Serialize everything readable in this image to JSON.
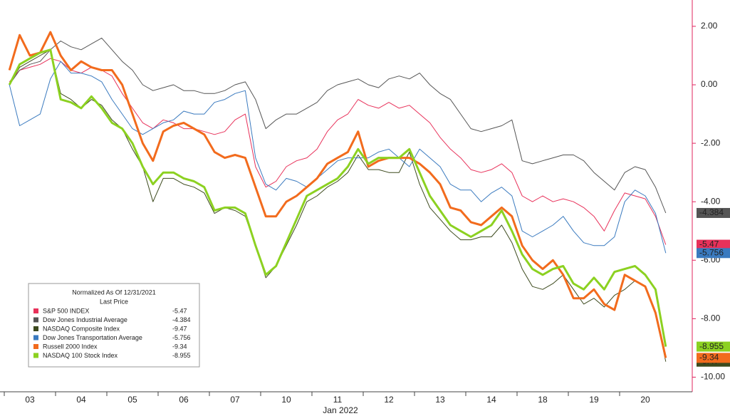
{
  "chart_data": {
    "type": "line",
    "xlabel": "Jan 2022",
    "legend_title": "Normalized As Of 12/31/2021",
    "legend_subtitle": "Last Price",
    "categories": [
      null,
      null,
      "03",
      null,
      null,
      null,
      null,
      "04",
      null,
      null,
      null,
      null,
      "05",
      null,
      null,
      null,
      null,
      "06",
      null,
      null,
      null,
      null,
      "07",
      null,
      null,
      null,
      null,
      "10",
      null,
      null,
      null,
      null,
      "11",
      null,
      null,
      null,
      null,
      "12",
      null,
      null,
      null,
      null,
      "13",
      null,
      null,
      null,
      null,
      "14",
      null,
      null,
      null,
      null,
      "18",
      null,
      null,
      null,
      null,
      "19",
      null,
      null,
      null,
      null,
      "20",
      null,
      null
    ],
    "ylim": [
      -10.5,
      2.9
    ],
    "yticks": [
      {
        "value": 2,
        "label": "2.00"
      },
      {
        "value": 0,
        "label": "0.00"
      },
      {
        "value": -2,
        "label": "-2.00"
      },
      {
        "value": -4,
        "label": "-4.00"
      },
      {
        "value": -6,
        "label": "-6.00"
      },
      {
        "value": -8,
        "label": "-8.00"
      },
      {
        "value": -10,
        "label": "-10.00"
      }
    ],
    "series": [
      {
        "name": "S&P 500 INDEX",
        "color": "#e8315a",
        "last_price": -5.47,
        "values": [
          0.1,
          0.5,
          0.6,
          0.7,
          0.9,
          0.8,
          0.5,
          0.4,
          0.6,
          0.5,
          0.3,
          -0.3,
          -0.8,
          -1.3,
          -1.5,
          -1.2,
          -1.3,
          -1.5,
          -1.5,
          -1.6,
          -1.7,
          -1.6,
          -1.2,
          -1.0,
          -2.8,
          -3.5,
          -3.3,
          -2.8,
          -2.6,
          -2.5,
          -2.2,
          -1.6,
          -1.2,
          -1.0,
          -0.5,
          -0.7,
          -0.8,
          -0.6,
          -0.8,
          -0.7,
          -1.0,
          -1.3,
          -1.8,
          -2.2,
          -2.5,
          -2.9,
          -3.0,
          -2.9,
          -2.7,
          -3.0,
          -3.8,
          -4.0,
          -3.8,
          -4.0,
          -3.9,
          -4.0,
          -4.2,
          -4.5,
          -5.0,
          -4.3,
          -3.7,
          -3.8,
          -3.9,
          -4.5,
          -5.47
        ]
      },
      {
        "name": "Dow Jones Industrial Average",
        "color": "#555555",
        "last_price": -4.384,
        "values": [
          0.0,
          0.5,
          0.7,
          0.8,
          1.2,
          1.5,
          1.3,
          1.2,
          1.4,
          1.6,
          1.2,
          0.8,
          0.5,
          0.0,
          -0.2,
          -0.1,
          0.0,
          -0.2,
          -0.2,
          -0.3,
          -0.3,
          -0.2,
          0.0,
          0.1,
          -0.5,
          -1.5,
          -1.2,
          -1.0,
          -1.0,
          -0.8,
          -0.6,
          -0.2,
          0.0,
          0.1,
          0.2,
          0.0,
          -0.1,
          0.2,
          0.3,
          0.2,
          0.4,
          0.0,
          -0.3,
          -0.5,
          -1.0,
          -1.5,
          -1.6,
          -1.5,
          -1.4,
          -1.2,
          -2.6,
          -2.7,
          -2.6,
          -2.5,
          -2.4,
          -2.4,
          -2.6,
          -3.0,
          -3.3,
          -3.6,
          -3.0,
          -2.8,
          -2.9,
          -3.5,
          -4.384
        ]
      },
      {
        "name": "NASDAQ Composite Index",
        "color": "#3d4a1e",
        "last_price": -9.47,
        "values": [
          0.0,
          0.6,
          0.8,
          1.0,
          1.2,
          -0.3,
          -0.5,
          -0.8,
          -0.5,
          -0.7,
          -1.2,
          -1.5,
          -2.2,
          -2.8,
          -4.0,
          -3.2,
          -3.2,
          -3.4,
          -3.5,
          -3.7,
          -4.4,
          -4.2,
          -4.3,
          -4.5,
          -5.5,
          -6.6,
          -6.2,
          -5.5,
          -4.8,
          -4.0,
          -3.8,
          -3.5,
          -3.3,
          -3.0,
          -2.4,
          -2.9,
          -2.9,
          -3.0,
          -3.0,
          -2.3,
          -3.4,
          -4.2,
          -4.6,
          -5.0,
          -5.3,
          -5.3,
          -5.2,
          -5.2,
          -4.8,
          -5.4,
          -6.3,
          -6.9,
          -7.0,
          -6.8,
          -6.5,
          -7.0,
          -7.5,
          -7.3,
          -7.6,
          -7.2,
          -7.0,
          -6.7,
          -6.9,
          -7.8,
          -9.47
        ]
      },
      {
        "name": "Dow Jones Transportation Average",
        "color": "#3a7abf",
        "last_price": -5.756,
        "values": [
          0.0,
          -1.4,
          -1.2,
          -1.0,
          0.2,
          0.8,
          0.4,
          0.4,
          0.3,
          0.1,
          -0.5,
          -1.0,
          -1.5,
          -1.7,
          -1.5,
          -1.3,
          -1.2,
          -0.9,
          -1.0,
          -1.0,
          -0.6,
          -0.5,
          -0.3,
          -0.2,
          -2.5,
          -3.4,
          -3.6,
          -3.2,
          -3.3,
          -3.5,
          -3.2,
          -2.9,
          -2.6,
          -2.5,
          -2.5,
          -2.5,
          -2.3,
          -2.2,
          -2.5,
          -2.8,
          -2.2,
          -2.5,
          -2.8,
          -3.4,
          -3.6,
          -3.6,
          -4.0,
          -3.7,
          -3.5,
          -3.8,
          -5.0,
          -5.2,
          -5.0,
          -4.8,
          -4.5,
          -5.0,
          -5.4,
          -5.5,
          -5.5,
          -5.2,
          -4.0,
          -3.6,
          -3.8,
          -4.4,
          -5.756
        ]
      },
      {
        "name": "Russell 2000 Index",
        "color": "#f26b1d",
        "last_price": -9.34,
        "values": [
          0.5,
          1.7,
          1.0,
          1.1,
          1.8,
          1.0,
          0.5,
          0.8,
          0.6,
          0.5,
          0.5,
          0.0,
          -1.0,
          -2.0,
          -2.6,
          -1.6,
          -1.4,
          -1.3,
          -1.5,
          -1.7,
          -2.3,
          -2.5,
          -2.4,
          -2.5,
          -3.5,
          -4.5,
          -4.5,
          -4.0,
          -3.8,
          -3.5,
          -3.2,
          -2.7,
          -2.5,
          -2.3,
          -1.6,
          -2.8,
          -2.6,
          -2.5,
          -2.5,
          -2.5,
          -2.7,
          -3.0,
          -3.4,
          -4.2,
          -4.3,
          -4.7,
          -4.8,
          -4.5,
          -4.2,
          -4.5,
          -5.5,
          -6.0,
          -6.3,
          -6.0,
          -6.5,
          -7.3,
          -7.3,
          -7.0,
          -7.5,
          -7.7,
          -6.5,
          -6.7,
          -6.9,
          -7.8,
          -9.34
        ]
      },
      {
        "name": "NASDAQ 100 Stock Index",
        "color": "#8cd121",
        "last_price": -8.955,
        "values": [
          0.0,
          0.7,
          0.9,
          1.1,
          1.2,
          -0.5,
          -0.6,
          -0.8,
          -0.4,
          -0.8,
          -1.3,
          -1.5,
          -2.0,
          -2.8,
          -3.4,
          -3.0,
          -3.0,
          -3.2,
          -3.3,
          -3.5,
          -4.3,
          -4.2,
          -4.2,
          -4.4,
          -5.5,
          -6.5,
          -6.2,
          -5.4,
          -4.6,
          -3.8,
          -3.6,
          -3.4,
          -3.2,
          -2.8,
          -2.2,
          -2.7,
          -2.5,
          -2.5,
          -2.5,
          -2.2,
          -3.0,
          -3.8,
          -4.3,
          -4.8,
          -5.0,
          -5.2,
          -5.0,
          -4.8,
          -4.3,
          -5.0,
          -5.8,
          -6.3,
          -6.5,
          -6.3,
          -6.2,
          -6.8,
          -7.0,
          -6.6,
          -7.0,
          -6.4,
          -6.3,
          -6.2,
          -6.5,
          -7.0,
          -8.955
        ]
      }
    ]
  }
}
